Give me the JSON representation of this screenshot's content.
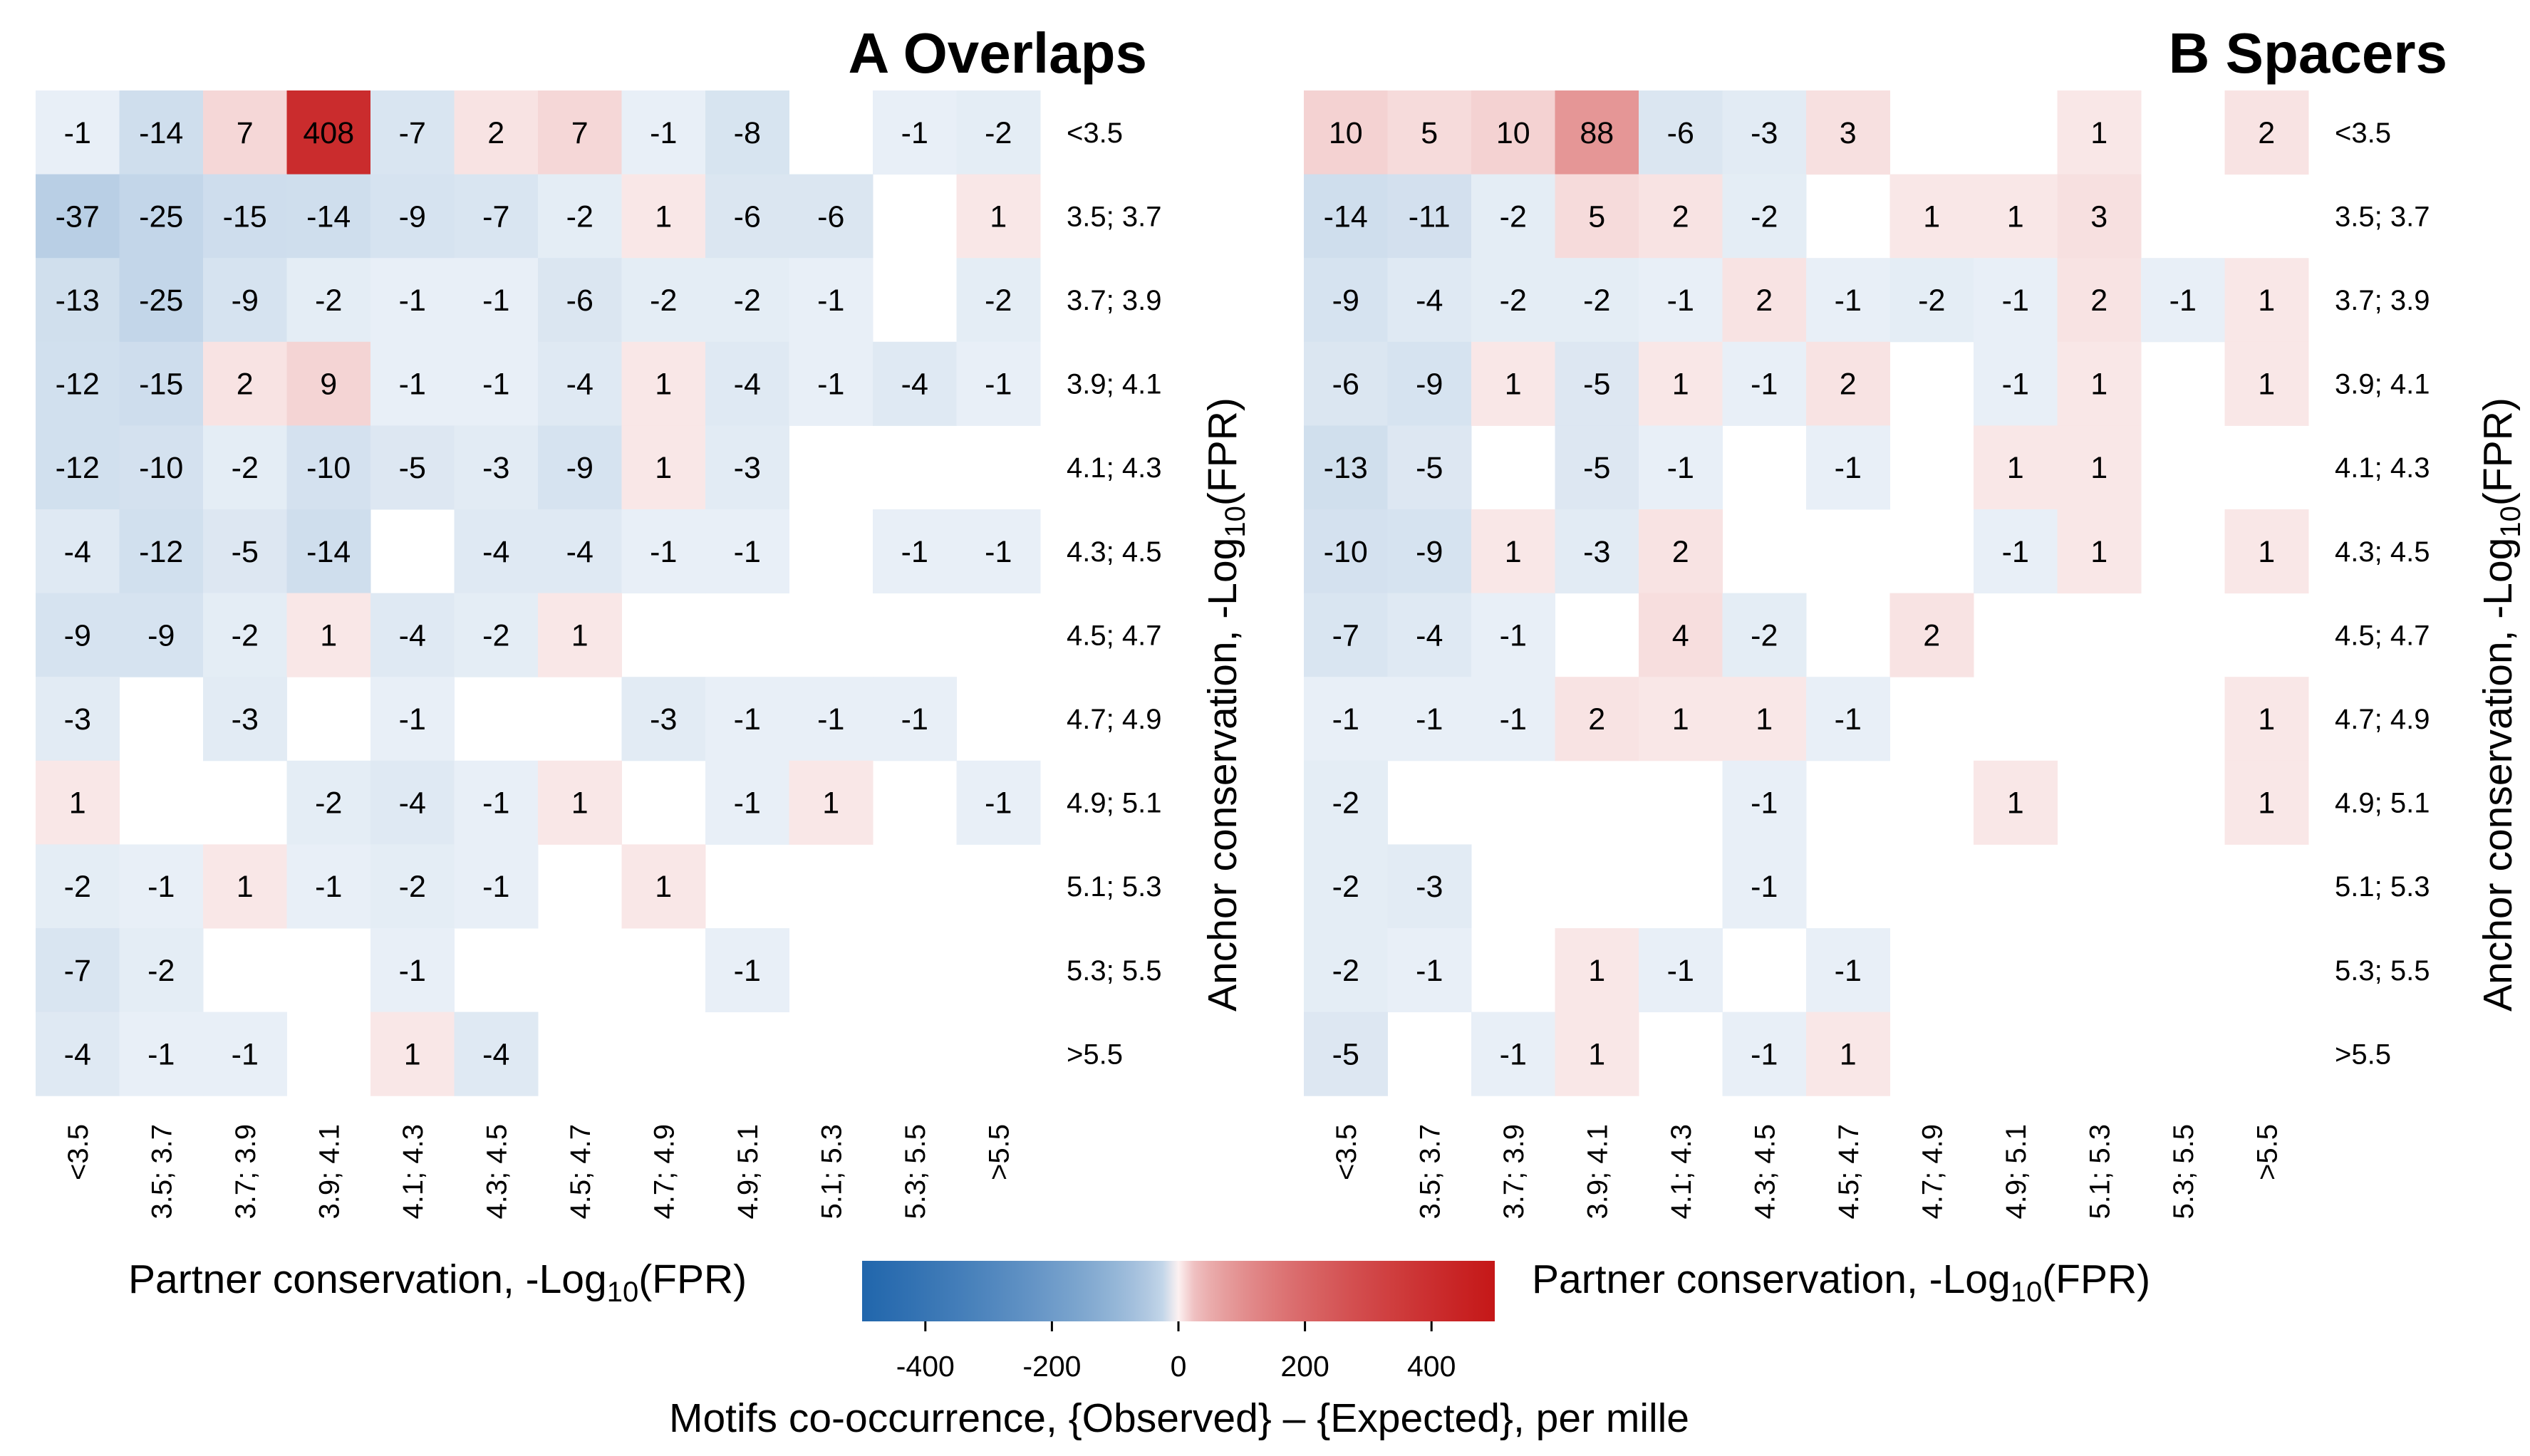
{
  "chart_data": [
    {
      "type": "heatmap",
      "title": "A Overlaps",
      "xlabel": "Partner conservation, -Log",
      "xlabel_sub": "10",
      "xlabel_tail": "(FPR)",
      "ylabel": "Anchor conservation, -Log",
      "ylabel_sub": "10",
      "ylabel_tail": "(FPR)",
      "x_categories": [
        "<3.5",
        "3.5; 3.7",
        "3.7; 3.9",
        "3.9; 4.1",
        "4.1; 4.3",
        "4.3; 4.5",
        "4.5; 4.7",
        "4.7; 4.9",
        "4.9; 5.1",
        "5.1; 5.3",
        "5.3; 5.5",
        ">5.5"
      ],
      "y_categories": [
        "<3.5",
        "3.5; 3.7",
        "3.7; 3.9",
        "3.9; 4.1",
        "4.1; 4.3",
        "4.3; 4.5",
        "4.5; 4.7",
        "4.7; 4.9",
        "4.9; 5.1",
        "5.1; 5.3",
        "5.3; 5.5",
        ">5.5"
      ],
      "values": [
        [
          -1,
          -14,
          7,
          408,
          -7,
          2,
          7,
          -1,
          -8,
          null,
          -1,
          -2
        ],
        [
          -37,
          -25,
          -15,
          -14,
          -9,
          -7,
          -2,
          1,
          -6,
          -6,
          null,
          1
        ],
        [
          -13,
          -25,
          -9,
          -2,
          -1,
          -1,
          -6,
          -2,
          -2,
          -1,
          null,
          -2
        ],
        [
          -12,
          -15,
          2,
          9,
          -1,
          -1,
          -4,
          1,
          -4,
          -1,
          -4,
          -1
        ],
        [
          -12,
          -10,
          -2,
          -10,
          -5,
          -3,
          -9,
          1,
          -3,
          null,
          null,
          null
        ],
        [
          -4,
          -12,
          -5,
          -14,
          null,
          -4,
          -4,
          -1,
          -1,
          null,
          -1,
          -1
        ],
        [
          -9,
          -9,
          -2,
          1,
          -4,
          -2,
          1,
          null,
          null,
          null,
          null,
          null
        ],
        [
          -3,
          null,
          -3,
          null,
          -1,
          null,
          null,
          -3,
          -1,
          -1,
          -1,
          null
        ],
        [
          1,
          null,
          null,
          -2,
          -4,
          -1,
          1,
          null,
          -1,
          1,
          null,
          -1
        ],
        [
          -2,
          -1,
          1,
          -1,
          -2,
          -1,
          null,
          1,
          null,
          null,
          null,
          null
        ],
        [
          -7,
          -2,
          null,
          null,
          -1,
          null,
          null,
          null,
          -1,
          null,
          null,
          null
        ],
        [
          -4,
          -1,
          -1,
          null,
          1,
          -4,
          null,
          null,
          null,
          null,
          null,
          null
        ]
      ]
    },
    {
      "type": "heatmap",
      "title": "B Spacers",
      "xlabel": "Partner conservation, -Log",
      "xlabel_sub": "10",
      "xlabel_tail": "(FPR)",
      "ylabel": "Anchor conservation, -Log",
      "ylabel_sub": "10",
      "ylabel_tail": "(FPR)",
      "x_categories": [
        "<3.5",
        "3.5; 3.7",
        "3.7; 3.9",
        "3.9; 4.1",
        "4.1; 4.3",
        "4.3; 4.5",
        "4.5; 4.7",
        "4.7; 4.9",
        "4.9; 5.1",
        "5.1; 5.3",
        "5.3; 5.5",
        ">5.5"
      ],
      "y_categories": [
        "<3.5",
        "3.5; 3.7",
        "3.7; 3.9",
        "3.9; 4.1",
        "4.1; 4.3",
        "4.3; 4.5",
        "4.5; 4.7",
        "4.7; 4.9",
        "4.9; 5.1",
        "5.1; 5.3",
        "5.3; 5.5",
        ">5.5"
      ],
      "values": [
        [
          10,
          5,
          10,
          88,
          -6,
          -3,
          3,
          null,
          null,
          1,
          null,
          2
        ],
        [
          -14,
          -11,
          -2,
          5,
          2,
          -2,
          null,
          1,
          1,
          3,
          null,
          null
        ],
        [
          -9,
          -4,
          -2,
          -2,
          -1,
          2,
          -1,
          -2,
          -1,
          2,
          -1,
          1
        ],
        [
          -6,
          -9,
          1,
          -5,
          1,
          -1,
          2,
          null,
          -1,
          1,
          null,
          1
        ],
        [
          -13,
          -5,
          null,
          -5,
          -1,
          null,
          -1,
          null,
          1,
          1,
          null,
          null
        ],
        [
          -10,
          -9,
          1,
          -3,
          2,
          null,
          null,
          null,
          -1,
          1,
          null,
          1
        ],
        [
          -7,
          -4,
          -1,
          null,
          4,
          -2,
          null,
          2,
          null,
          null,
          null,
          null
        ],
        [
          -1,
          -1,
          -1,
          2,
          1,
          1,
          -1,
          null,
          null,
          null,
          null,
          1
        ],
        [
          -2,
          null,
          null,
          null,
          null,
          -1,
          null,
          null,
          1,
          null,
          null,
          1
        ],
        [
          -2,
          -3,
          null,
          null,
          null,
          -1,
          null,
          null,
          null,
          null,
          null,
          null
        ],
        [
          -2,
          -1,
          null,
          1,
          -1,
          null,
          -1,
          null,
          null,
          null,
          null,
          null
        ],
        [
          -5,
          null,
          -1,
          1,
          null,
          -1,
          1,
          null,
          null,
          null,
          null,
          null
        ]
      ]
    }
  ],
  "colorbar": {
    "range": [
      -500,
      500
    ],
    "ticks": [
      -400,
      -200,
      0,
      200,
      400
    ],
    "tick_labels": [
      "-400",
      "-200",
      "0",
      "200",
      "400"
    ],
    "label": "Motifs co-occurrence, {Observed} – {Expected}, per mille",
    "negative_color": "#2166ac",
    "zero_color": "#ffffff",
    "positive_color": "#c51718"
  }
}
